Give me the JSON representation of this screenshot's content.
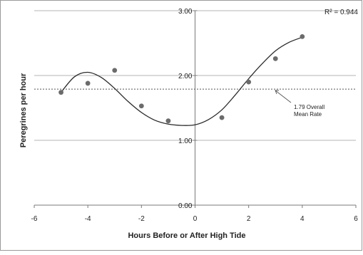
{
  "chart_data": {
    "type": "scatter",
    "xlabel": "Hours Before or After High Tide",
    "ylabel": "Peregrines per hour",
    "xlim": [
      -6,
      6
    ],
    "ylim": [
      0,
      3
    ],
    "x_ticks": [
      -6,
      -4,
      -2,
      0,
      2,
      4,
      6
    ],
    "x_tick_labels": [
      "-6",
      "-4",
      "-2",
      "0",
      "2",
      "4",
      "6"
    ],
    "y_ticks": [
      0,
      1,
      2,
      3
    ],
    "y_tick_labels": [
      "0.00",
      "1.00",
      "2.00",
      "3.00"
    ],
    "grid": "horizontal",
    "legend": "none",
    "points": {
      "x": [
        -5,
        -4,
        -3,
        -2,
        -1,
        1,
        2,
        3,
        4
      ],
      "y": [
        1.74,
        1.88,
        2.08,
        1.53,
        1.3,
        1.35,
        1.9,
        2.26,
        2.6
      ]
    },
    "trendline": {
      "type": "polynomial fit",
      "x": [
        -5,
        -4.5,
        -4,
        -3.5,
        -3,
        -2.5,
        -2,
        -1.5,
        -1,
        -0.5,
        0,
        0.5,
        1,
        1.5,
        2,
        2.5,
        3,
        3.5,
        4
      ],
      "y": [
        1.74,
        1.98,
        2.05,
        1.97,
        1.8,
        1.6,
        1.43,
        1.31,
        1.25,
        1.23,
        1.24,
        1.32,
        1.47,
        1.7,
        1.95,
        2.18,
        2.38,
        2.51,
        2.59
      ]
    },
    "r_squared_label": "R² = 0.944",
    "reference_line": {
      "y": 1.79,
      "style": "dotted",
      "annotation_line1": "1.79 Overall",
      "annotation_line2": "Mean Rate"
    }
  },
  "colors": {
    "point": "#6b6b6b",
    "trendline": "#2a2a2a",
    "grid": "#b5b5b5",
    "axis": "#7a7a7a",
    "mean_line": "#555555",
    "text": "#222222",
    "frame": "#9a9a9a"
  }
}
